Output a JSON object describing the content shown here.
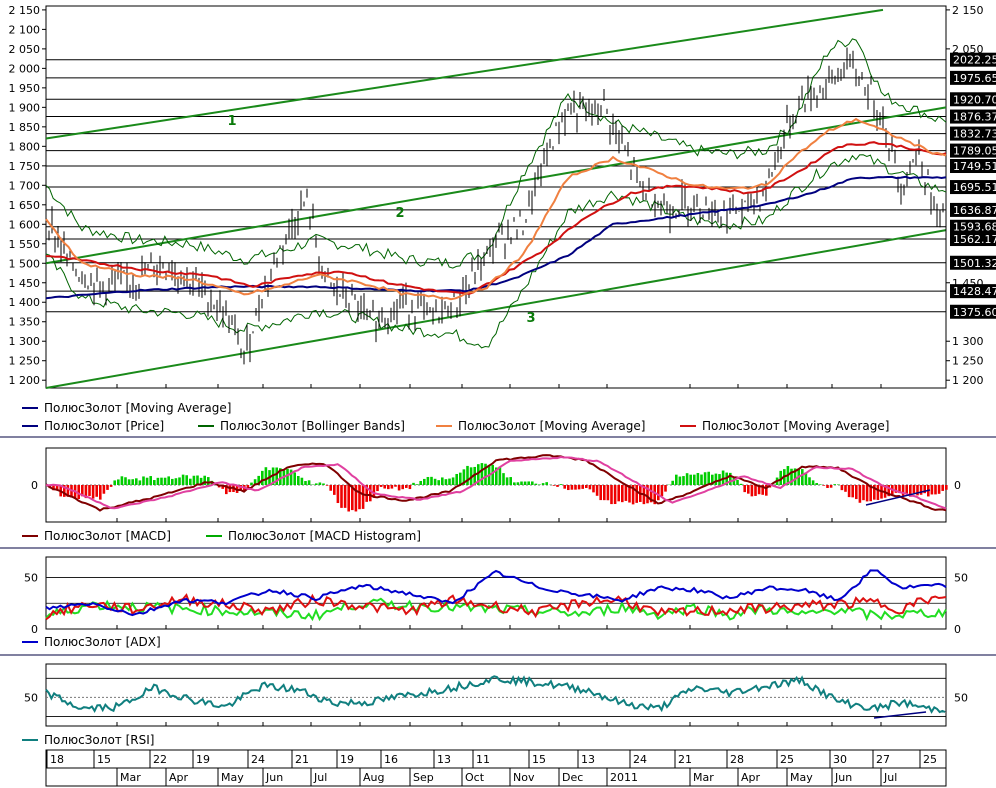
{
  "colors": {
    "price": "#000000",
    "bollinger": "#006400",
    "ma_blue": "#00007f",
    "ma_orange": "#f08040",
    "ma_red": "#d01010",
    "channel": "#1a8a1a",
    "macd": "#7f0000",
    "macd_signal": "#e040a0",
    "hist_pos": "#00cc00",
    "hist_neg": "#ee0000",
    "adx": "#0000cc",
    "di_plus": "#22dd22",
    "di_minus": "#dd1111",
    "rsi": "#107f7f",
    "trend": "#000080",
    "separator": "#8080a0"
  },
  "main": {
    "y_ticks": [
      "2 150",
      "2 100",
      "2 050",
      "2 000",
      "1 950",
      "1 900",
      "1 850",
      "1 800",
      "1 750",
      "1 700",
      "1 650",
      "1 600",
      "1 550",
      "1 500",
      "1 450",
      "1 400",
      "1 350",
      "1 300",
      "1 250",
      "1 200"
    ],
    "y_ticks_right": [
      "2 150",
      "2 050",
      "1 450",
      "1 300",
      "1 250",
      "1 200"
    ],
    "price_levels": [
      "2022.25",
      "1975.65",
      "1920.70",
      "1876.37",
      "1832.73",
      "1789.05",
      "1749.51",
      "1695.51",
      "1636.87",
      "1593.68",
      "1562.17",
      "1501.32",
      "1428.47",
      "1375.60"
    ],
    "channel_labels": [
      "1",
      "2",
      "3"
    ],
    "legend": [
      {
        "label": "ПолюсЗолот [Moving Average]",
        "color": "#00007f"
      },
      {
        "label": "ПолюсЗолот [Price]",
        "color": "#00007f"
      },
      {
        "label": "ПолюсЗолот [Bollinger Bands]",
        "color": "#006400"
      },
      {
        "label": "ПолюсЗолот [Moving Average]",
        "color": "#f08040"
      },
      {
        "label": "ПолюсЗолот [Moving Average]",
        "color": "#d01010"
      }
    ]
  },
  "macd_panel": {
    "y_ticks": [
      "0"
    ],
    "legend": [
      {
        "label": "ПолюсЗолот [MACD]",
        "color": "#7f0000"
      },
      {
        "label": "ПолюсЗолот [MACD Histogram]",
        "color": "#00aa00"
      }
    ]
  },
  "adx_panel": {
    "y_ticks": [
      "50",
      "0"
    ],
    "legend": [
      {
        "label": "ПолюсЗолот [ADX]",
        "color": "#0000cc"
      }
    ]
  },
  "rsi_panel": {
    "y_ticks": [
      "50"
    ],
    "legend": [
      {
        "label": "ПолюсЗолот [RSI]",
        "color": "#107f7f"
      }
    ]
  },
  "x_axis": {
    "top_labels": [
      "18",
      "15",
      "22",
      "19",
      "24",
      "21",
      "19",
      "16",
      "13",
      "11",
      "15",
      "13",
      "24",
      "21",
      "28",
      "25",
      "30",
      "27",
      "25"
    ],
    "bottom_labels": [
      "Mar",
      "Apr",
      "May",
      "Jun",
      "Jul",
      "Aug",
      "Sep",
      "Oct",
      "Nov",
      "Dec",
      "2011",
      "Mar",
      "Apr",
      "May",
      "Jun",
      "Jul"
    ]
  },
  "chart_data": {
    "type": "line",
    "title": "",
    "y_range": [
      1180,
      2160
    ],
    "series_anchor_points": {
      "price_close": [
        [
          0,
          1615
        ],
        [
          0.03,
          1490
        ],
        [
          0.06,
          1440
        ],
        [
          0.1,
          1460
        ],
        [
          0.13,
          1500
        ],
        [
          0.16,
          1460
        ],
        [
          0.2,
          1370
        ],
        [
          0.22,
          1260
        ],
        [
          0.24,
          1420
        ],
        [
          0.27,
          1590
        ],
        [
          0.29,
          1660
        ],
        [
          0.31,
          1450
        ],
        [
          0.34,
          1400
        ],
        [
          0.36,
          1350
        ],
        [
          0.4,
          1400
        ],
        [
          0.43,
          1360
        ],
        [
          0.46,
          1410
        ],
        [
          0.5,
          1560
        ],
        [
          0.53,
          1600
        ],
        [
          0.56,
          1800
        ],
        [
          0.58,
          1900
        ],
        [
          0.6,
          1880
        ],
        [
          0.62,
          1900
        ],
        [
          0.64,
          1800
        ],
        [
          0.66,
          1700
        ],
        [
          0.69,
          1640
        ],
        [
          0.72,
          1660
        ],
        [
          0.75,
          1630
        ],
        [
          0.78,
          1640
        ],
        [
          0.8,
          1690
        ],
        [
          0.82,
          1830
        ],
        [
          0.84,
          1920
        ],
        [
          0.87,
          1960
        ],
        [
          0.89,
          2010
        ],
        [
          0.91,
          1960
        ],
        [
          0.93,
          1870
        ],
        [
          0.95,
          1700
        ],
        [
          0.97,
          1790
        ],
        [
          0.99,
          1610
        ]
      ],
      "ma_red": [
        [
          0,
          1520
        ],
        [
          0.06,
          1500
        ],
        [
          0.12,
          1480
        ],
        [
          0.18,
          1470
        ],
        [
          0.23,
          1440
        ],
        [
          0.28,
          1470
        ],
        [
          0.33,
          1480
        ],
        [
          0.38,
          1450
        ],
        [
          0.43,
          1430
        ],
        [
          0.47,
          1420
        ],
        [
          0.5,
          1460
        ],
        [
          0.55,
          1530
        ],
        [
          0.6,
          1620
        ],
        [
          0.65,
          1680
        ],
        [
          0.7,
          1700
        ],
        [
          0.75,
          1690
        ],
        [
          0.78,
          1680
        ],
        [
          0.8,
          1690
        ],
        [
          0.84,
          1740
        ],
        [
          0.88,
          1800
        ],
        [
          0.92,
          1810
        ],
        [
          0.95,
          1800
        ],
        [
          0.99,
          1780
        ]
      ],
      "ma_orange": [
        [
          0,
          1610
        ],
        [
          0.04,
          1500
        ],
        [
          0.1,
          1470
        ],
        [
          0.16,
          1460
        ],
        [
          0.22,
          1420
        ],
        [
          0.26,
          1440
        ],
        [
          0.3,
          1470
        ],
        [
          0.35,
          1450
        ],
        [
          0.4,
          1420
        ],
        [
          0.45,
          1410
        ],
        [
          0.49,
          1440
        ],
        [
          0.53,
          1520
        ],
        [
          0.58,
          1720
        ],
        [
          0.63,
          1770
        ],
        [
          0.67,
          1740
        ],
        [
          0.72,
          1700
        ],
        [
          0.76,
          1690
        ],
        [
          0.8,
          1700
        ],
        [
          0.83,
          1770
        ],
        [
          0.87,
          1840
        ],
        [
          0.9,
          1870
        ],
        [
          0.93,
          1840
        ],
        [
          0.96,
          1810
        ],
        [
          0.99,
          1780
        ]
      ],
      "ma_blue": [
        [
          0,
          1410
        ],
        [
          0.1,
          1430
        ],
        [
          0.2,
          1440
        ],
        [
          0.3,
          1440
        ],
        [
          0.4,
          1430
        ],
        [
          0.47,
          1430
        ],
        [
          0.52,
          1460
        ],
        [
          0.58,
          1520
        ],
        [
          0.63,
          1600
        ],
        [
          0.7,
          1620
        ],
        [
          0.8,
          1650
        ],
        [
          0.85,
          1680
        ],
        [
          0.9,
          1720
        ],
        [
          0.99,
          1720
        ]
      ]
    },
    "channel_lines": [
      {
        "name": "1",
        "from": [
          0,
          1820
        ],
        "to": [
          0.93,
          2150
        ]
      },
      {
        "name": "2",
        "from": [
          0,
          1500
        ],
        "to": [
          1,
          1900
        ]
      },
      {
        "name": "3",
        "from": [
          0,
          1180
        ],
        "to": [
          1,
          1585
        ]
      }
    ],
    "horizontal_levels": [
      2022.25,
      1975.65,
      1920.7,
      1876.37,
      1832.73,
      1789.05,
      1749.51,
      1695.51,
      1636.87,
      1593.68,
      1562.17,
      1501.32,
      1428.47,
      1375.6
    ],
    "macd_anchor": [
      [
        0,
        0
      ],
      [
        0.06,
        -0.8
      ],
      [
        0.12,
        -0.4
      ],
      [
        0.18,
        0.1
      ],
      [
        0.22,
        -0.2
      ],
      [
        0.27,
        0.6
      ],
      [
        0.31,
        0.7
      ],
      [
        0.35,
        -0.3
      ],
      [
        0.4,
        -0.5
      ],
      [
        0.45,
        -0.2
      ],
      [
        0.5,
        0.8
      ],
      [
        0.56,
        0.95
      ],
      [
        0.6,
        0.8
      ],
      [
        0.64,
        0.1
      ],
      [
        0.68,
        -0.6
      ],
      [
        0.72,
        -0.2
      ],
      [
        0.76,
        0.3
      ],
      [
        0.8,
        -0.1
      ],
      [
        0.84,
        0.6
      ],
      [
        0.88,
        0.55
      ],
      [
        0.92,
        -0.1
      ],
      [
        0.96,
        -0.5
      ],
      [
        0.99,
        -0.8
      ]
    ],
    "adx_anchor": [
      [
        0,
        20
      ],
      [
        0.05,
        25
      ],
      [
        0.1,
        14
      ],
      [
        0.15,
        28
      ],
      [
        0.2,
        26
      ],
      [
        0.25,
        38
      ],
      [
        0.3,
        30
      ],
      [
        0.35,
        42
      ],
      [
        0.4,
        35
      ],
      [
        0.45,
        25
      ],
      [
        0.5,
        55
      ],
      [
        0.55,
        40
      ],
      [
        0.6,
        33
      ],
      [
        0.64,
        28
      ],
      [
        0.68,
        40
      ],
      [
        0.72,
        38
      ],
      [
        0.76,
        30
      ],
      [
        0.8,
        40
      ],
      [
        0.84,
        38
      ],
      [
        0.88,
        28
      ],
      [
        0.92,
        58
      ],
      [
        0.95,
        40
      ],
      [
        0.98,
        42
      ]
    ],
    "rsi_anchor": [
      [
        0,
        55
      ],
      [
        0.04,
        38
      ],
      [
        0.08,
        40
      ],
      [
        0.12,
        60
      ],
      [
        0.16,
        48
      ],
      [
        0.2,
        40
      ],
      [
        0.24,
        62
      ],
      [
        0.28,
        58
      ],
      [
        0.32,
        44
      ],
      [
        0.36,
        45
      ],
      [
        0.4,
        52
      ],
      [
        0.45,
        60
      ],
      [
        0.5,
        70
      ],
      [
        0.55,
        65
      ],
      [
        0.6,
        58
      ],
      [
        0.64,
        44
      ],
      [
        0.68,
        38
      ],
      [
        0.72,
        60
      ],
      [
        0.76,
        55
      ],
      [
        0.8,
        62
      ],
      [
        0.84,
        68
      ],
      [
        0.88,
        46
      ],
      [
        0.92,
        38
      ],
      [
        0.95,
        45
      ],
      [
        0.98,
        38
      ]
    ]
  }
}
